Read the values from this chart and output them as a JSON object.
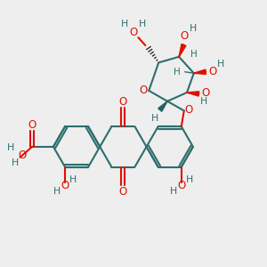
{
  "background_color": "#eeeeee",
  "bond_color": "#2d6e6e",
  "oxygen_color": "#dd1100",
  "dark_color": "#1a1a1a",
  "figsize": [
    3.0,
    3.0
  ],
  "dpi": 100,
  "xlim": [
    0,
    10
  ],
  "ylim": [
    0,
    10
  ]
}
